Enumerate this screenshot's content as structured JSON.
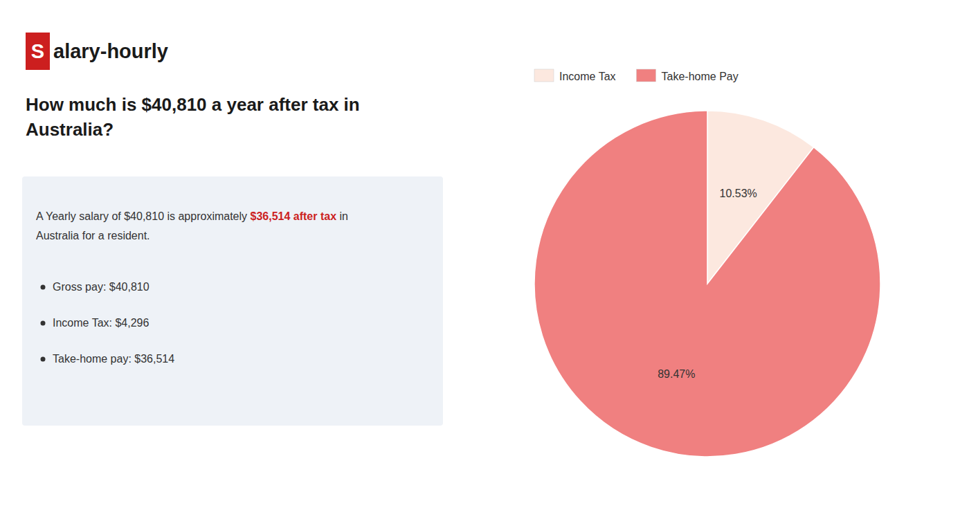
{
  "chart_data": {
    "type": "pie",
    "title": "How much is $40,810 a year after tax in Australia?",
    "annotations": [
      {
        "text": "S",
        "color": "#cc1f1f"
      },
      {
        "text": "alary-hourly"
      },
      {
        "text": "A Yearly salary of $40,810 is approximately "
      },
      {
        "text": "$36,514 after tax",
        "color": "#cc1f1f"
      },
      {
        "text": " in"
      },
      {
        "text": "Australia for a resident."
      },
      {
        "text": "Gross pay: $40,810"
      },
      {
        "text": "Income Tax: $4,296"
      },
      {
        "text": "Take-home pay: $36,514"
      }
    ],
    "categories": [
      "Income Tax",
      "Take-home Pay"
    ],
    "values": [
      10.53,
      89.47
    ],
    "colors": [
      "#fce8df",
      "#f08080"
    ],
    "data_labels": true,
    "value_labels": [
      "10.53%",
      "89.47%"
    ],
    "legend": "top"
  }
}
